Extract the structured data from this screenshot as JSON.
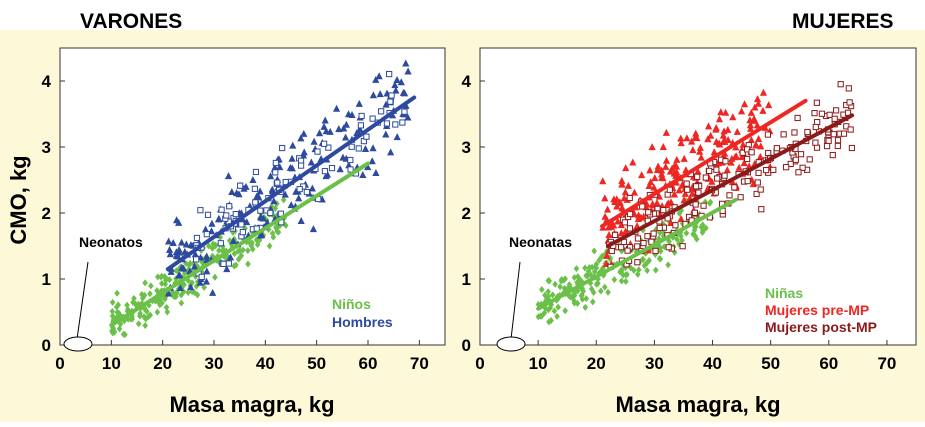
{
  "figure": {
    "ylabel": "CMO, kg",
    "colors": {
      "background": "#fdf8d7",
      "green": "#6bc049",
      "blue": "#2e4a9e",
      "red": "#ee2722",
      "darkred": "#8b1a1a"
    }
  },
  "chart_data": [
    {
      "type": "scatter",
      "title": "VARONES",
      "xlabel": "Masa magra, kg",
      "ylabel": "CMO, kg",
      "xlim": [
        0,
        75
      ],
      "ylim": [
        0,
        4.5
      ],
      "xticks": [
        0,
        10,
        20,
        30,
        40,
        50,
        60,
        70
      ],
      "yticks": [
        0,
        1,
        2,
        3,
        4
      ],
      "annotation": "Neonatos",
      "legend": [
        "Niños",
        "Hombres"
      ],
      "legend_position": "bottom-right",
      "series": [
        {
          "name": "Niños",
          "marker": "diamond",
          "color": "#6bc049",
          "x_range": [
            10,
            44
          ],
          "fit": [
            [
              10,
              0.3
            ],
            [
              60,
              2.75
            ]
          ],
          "n_points": 260,
          "seed": 11,
          "noise": 0.15
        },
        {
          "name": "Hombres",
          "marker": "triangle-filled",
          "color": "#2e4a9e",
          "x_range": [
            21,
            68
          ],
          "fit": [
            [
              21,
              1.15
            ],
            [
              69,
              3.75
            ]
          ],
          "n_points": 190,
          "seed": 22,
          "noise": 0.35
        },
        {
          "name": "Hombres",
          "marker": "square-open",
          "color": "#2e4a9e",
          "x_range": [
            26,
            69
          ],
          "fit": [
            [
              21,
              1.15
            ],
            [
              69,
              3.75
            ]
          ],
          "n_points": 90,
          "seed": 33,
          "noise": 0.3
        }
      ],
      "fit_lines": [
        {
          "series": "Niños",
          "color": "#6bc049",
          "x": [
            10,
            60
          ],
          "y": [
            0.3,
            2.75
          ]
        },
        {
          "series": "Hombres",
          "color": "#2e4a9e",
          "x": [
            21,
            69
          ],
          "y": [
            1.15,
            3.75
          ]
        }
      ]
    },
    {
      "type": "scatter",
      "title": "MUJERES",
      "xlabel": "Masa magra, kg",
      "ylabel": "CMO, kg",
      "xlim": [
        0,
        75
      ],
      "ylim": [
        0,
        4.5
      ],
      "xticks": [
        0,
        10,
        20,
        30,
        40,
        50,
        60,
        70
      ],
      "yticks": [
        0,
        1,
        2,
        3,
        4
      ],
      "annotation": "Neonatas",
      "legend": [
        "Niñas",
        "Mujeres pre-MP",
        "Mujeres post-MP"
      ],
      "legend_position": "bottom-right",
      "series": [
        {
          "name": "Niñas",
          "marker": "diamond",
          "color": "#6bc049",
          "x_range": [
            10,
            40
          ],
          "fit": [
            [
              10,
              0.55
            ],
            [
              44,
              2.2
            ]
          ],
          "n_points": 240,
          "seed": 44,
          "noise": 0.17
        },
        {
          "name": "Mujeres pre-MP",
          "marker": "triangle-filled",
          "color": "#ee2722",
          "x_range": [
            21,
            50
          ],
          "fit": [
            [
              21,
              1.8
            ],
            [
              56,
              3.7
            ]
          ],
          "n_points": 230,
          "seed": 55,
          "noise": 0.32
        },
        {
          "name": "Mujeres post-MP",
          "marker": "square-open",
          "color": "#8b1a1a",
          "x_range": [
            22,
            64
          ],
          "fit": [
            [
              22,
              1.5
            ],
            [
              64,
              3.48
            ]
          ],
          "n_points": 190,
          "seed": 66,
          "noise": 0.25
        }
      ],
      "fit_lines": [
        {
          "series": "Niñas",
          "color": "#6bc049",
          "x": [
            10,
            44
          ],
          "y": [
            0.55,
            2.2
          ]
        },
        {
          "series": "Mujeres pre-MP",
          "color": "#ee2722",
          "x": [
            21,
            56
          ],
          "y": [
            1.8,
            3.7
          ]
        },
        {
          "series": "Mujeres post-MP",
          "color": "#8b1a1a",
          "x": [
            22,
            64
          ],
          "y": [
            1.5,
            3.48
          ]
        }
      ]
    }
  ]
}
